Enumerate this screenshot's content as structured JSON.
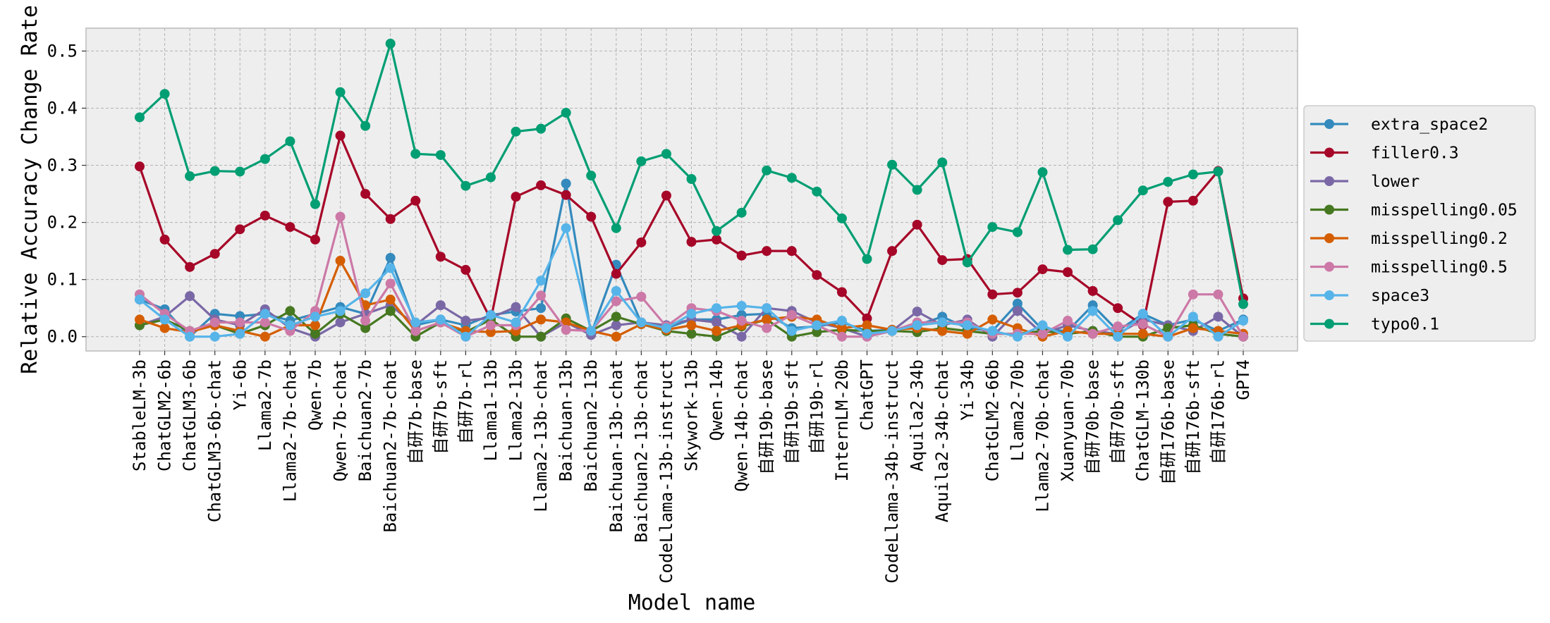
{
  "chart_data": {
    "type": "line",
    "title": "",
    "xlabel": "Model name",
    "ylabel": "Relative Accuracy Change Rate",
    "ylim": [
      -0.025,
      0.54
    ],
    "yticks": [
      "0.0",
      "0.1",
      "0.2",
      "0.3",
      "0.4",
      "0.5"
    ],
    "grid": true,
    "legend_position": "right",
    "categories": [
      "StableLM-3b",
      "ChatGLM2-6b",
      "ChatGLM3-6b",
      "ChatGLM3-6b-chat",
      "Yi-6b",
      "Llama2-7b",
      "Llama2-7b-chat",
      "Qwen-7b",
      "Qwen-7b-chat",
      "Baichuan2-7b",
      "Baichuan2-7b-chat",
      "自研7b-base",
      "自研7b-sft",
      "自研7b-rl",
      "Llama1-13b",
      "Llama2-13b",
      "Llama2-13b-chat",
      "Baichuan-13b",
      "Baichuan2-13b",
      "Baichuan-13b-chat",
      "Baichuan2-13b-chat",
      "CodeLlama-13b-instruct",
      "Skywork-13b",
      "Qwen-14b",
      "Qwen-14b-chat",
      "自研19b-base",
      "自研19b-sft",
      "自研19b-rl",
      "InternLM-20b",
      "ChatGPT",
      "CodeLlama-34b-instruct",
      "Aquila2-34b",
      "Aquila2-34b-chat",
      "Yi-34b",
      "ChatGLM2-66b",
      "Llama2-70b",
      "Llama2-70b-chat",
      "Xuanyuan-70b",
      "自研70b-base",
      "自研70b-sft",
      "ChatGLM-130b",
      "自研176b-base",
      "自研176b-sft",
      "自研176b-rl",
      "GPT4"
    ],
    "series": [
      {
        "name": "extra_space2",
        "color": "#348ABD",
        "values": [
          0.065,
          0.048,
          0.0,
          0.04,
          0.036,
          0.04,
          0.028,
          0.04,
          0.052,
          0.04,
          0.138,
          0.02,
          0.03,
          0.02,
          0.038,
          0.044,
          0.05,
          0.268,
          0.005,
          0.126,
          0.024,
          0.015,
          0.03,
          0.03,
          0.038,
          0.04,
          0.015,
          0.018,
          0.025,
          0.01,
          0.012,
          0.02,
          0.035,
          0.015,
          0.01,
          0.058,
          0.012,
          0.01,
          0.055,
          0.01,
          0.04,
          0.02,
          0.03,
          0.01,
          0.03
        ]
      },
      {
        "name": "filler0.3",
        "color": "#A60628",
        "values": [
          0.298,
          0.17,
          0.122,
          0.145,
          0.188,
          0.212,
          0.192,
          0.17,
          0.352,
          0.25,
          0.206,
          0.238,
          0.14,
          0.117,
          0.03,
          0.245,
          0.265,
          0.248,
          0.21,
          0.11,
          0.165,
          0.247,
          0.166,
          0.17,
          0.142,
          0.15,
          0.15,
          0.108,
          0.078,
          0.032,
          0.15,
          0.196,
          0.134,
          0.136,
          0.074,
          0.077,
          0.118,
          0.113,
          0.08,
          0.05,
          0.02,
          0.236,
          0.238,
          0.29,
          0.067
        ]
      },
      {
        "name": "lower",
        "color": "#7A68A6",
        "values": [
          0.02,
          0.035,
          0.071,
          0.03,
          0.02,
          0.048,
          0.015,
          0.0,
          0.025,
          0.04,
          0.055,
          0.02,
          0.055,
          0.028,
          0.033,
          0.052,
          0.0,
          0.025,
          0.003,
          0.02,
          0.025,
          0.02,
          0.03,
          0.025,
          0.0,
          0.05,
          0.045,
          0.025,
          0.015,
          0.0,
          0.01,
          0.044,
          0.02,
          0.03,
          0.0,
          0.045,
          0.005,
          0.02,
          0.01,
          0.005,
          0.03,
          0.02,
          0.01,
          0.035,
          0.0
        ]
      },
      {
        "name": "misspelling0.05",
        "color": "#467821",
        "values": [
          0.02,
          0.03,
          0.01,
          0.02,
          0.005,
          0.02,
          0.045,
          0.005,
          0.04,
          0.015,
          0.045,
          0.0,
          0.025,
          0.008,
          0.03,
          0.0,
          0.0,
          0.032,
          0.01,
          0.035,
          0.022,
          0.01,
          0.005,
          0.0,
          0.018,
          0.03,
          0.0,
          0.008,
          0.012,
          0.01,
          0.01,
          0.008,
          0.015,
          0.01,
          0.005,
          0.005,
          0.01,
          0.005,
          0.01,
          0.0,
          0.0,
          0.015,
          0.02,
          0.005,
          0.0
        ]
      },
      {
        "name": "misspelling0.2",
        "color": "#D55E00",
        "values": [
          0.03,
          0.015,
          0.008,
          0.02,
          0.01,
          0.0,
          0.02,
          0.02,
          0.133,
          0.055,
          0.065,
          0.01,
          0.025,
          0.01,
          0.008,
          0.01,
          0.03,
          0.025,
          0.01,
          0.0,
          0.022,
          0.012,
          0.02,
          0.01,
          0.02,
          0.03,
          0.035,
          0.03,
          0.015,
          0.02,
          0.012,
          0.015,
          0.01,
          0.005,
          0.03,
          0.015,
          0.0,
          0.01,
          0.005,
          0.005,
          0.005,
          0.0,
          0.015,
          0.01,
          0.005
        ]
      },
      {
        "name": "misspelling0.5",
        "color": "#CC79A7",
        "values": [
          0.074,
          0.04,
          0.01,
          0.025,
          0.025,
          0.025,
          0.01,
          0.045,
          0.21,
          0.028,
          0.093,
          0.01,
          0.025,
          0.0,
          0.02,
          0.02,
          0.072,
          0.012,
          0.01,
          0.062,
          0.07,
          0.018,
          0.05,
          0.045,
          0.028,
          0.015,
          0.038,
          0.02,
          0.0,
          0.0,
          0.01,
          0.025,
          0.025,
          0.025,
          0.005,
          0.005,
          0.005,
          0.028,
          0.005,
          0.018,
          0.022,
          0.0,
          0.074,
          0.074,
          0.0
        ]
      },
      {
        "name": "space3",
        "color": "#56B4E9",
        "values": [
          0.065,
          0.03,
          0.0,
          0.0,
          0.005,
          0.04,
          0.02,
          0.035,
          0.045,
          0.076,
          0.12,
          0.025,
          0.03,
          0.0,
          0.038,
          0.025,
          0.098,
          0.19,
          0.01,
          0.08,
          0.025,
          0.015,
          0.04,
          0.05,
          0.054,
          0.05,
          0.01,
          0.02,
          0.028,
          0.005,
          0.01,
          0.02,
          0.025,
          0.02,
          0.01,
          0.0,
          0.02,
          0.0,
          0.045,
          0.0,
          0.04,
          0.0,
          0.035,
          0.0,
          0.028
        ]
      },
      {
        "name": "typo0.1",
        "color": "#009E73",
        "values": [
          0.384,
          0.425,
          0.281,
          0.29,
          0.289,
          0.311,
          0.342,
          0.232,
          0.428,
          0.369,
          0.513,
          0.32,
          0.318,
          0.264,
          0.279,
          0.359,
          0.364,
          0.392,
          0.282,
          0.19,
          0.307,
          0.32,
          0.276,
          0.185,
          0.217,
          0.291,
          0.278,
          0.254,
          0.207,
          0.136,
          0.301,
          0.257,
          0.305,
          0.13,
          0.192,
          0.183,
          0.288,
          0.152,
          0.153,
          0.204,
          0.256,
          0.271,
          0.284,
          0.289,
          0.057
        ]
      }
    ]
  }
}
